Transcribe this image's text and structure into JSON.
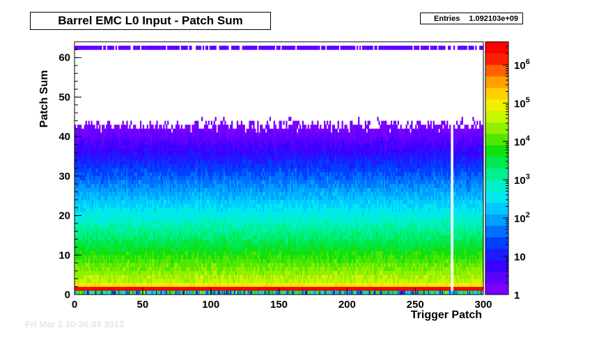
{
  "title": "Barrel EMC L0 Input - Patch Sum",
  "stats": {
    "label": "Entries",
    "value": "1.092103e+09"
  },
  "footer": {
    "date": "Fri Mar  2 10:36:09 2012"
  },
  "chart_data": {
    "type": "heatmap",
    "title": "Barrel EMC L0 Input - Patch Sum",
    "xlabel": "Trigger Patch",
    "ylabel": "Patch Sum",
    "xlim": [
      0,
      300
    ],
    "ylim": [
      0,
      64
    ],
    "x_ticks": [
      0,
      50,
      100,
      150,
      200,
      250,
      300
    ],
    "y_ticks": [
      0,
      10,
      20,
      30,
      40,
      50,
      60
    ],
    "z_scale": "log",
    "zlim": [
      1,
      4000000
    ],
    "z_ticks": [
      {
        "value": 1,
        "label": "1"
      },
      {
        "value": 10,
        "label": "10"
      },
      {
        "value": 100,
        "label": "10",
        "exp": "2"
      },
      {
        "value": 1000,
        "label": "10",
        "exp": "3"
      },
      {
        "value": 10000,
        "label": "10",
        "exp": "4"
      },
      {
        "value": 100000,
        "label": "10",
        "exp": "5"
      },
      {
        "value": 1000000,
        "label": "10",
        "exp": "6"
      }
    ],
    "palette": [
      "#7a00ff",
      "#5c00ff",
      "#3a00ff",
      "#1c1cff",
      "#0040ff",
      "#0070ff",
      "#00a0ff",
      "#00c8ff",
      "#00e8f0",
      "#00f0c8",
      "#00f08c",
      "#00e850",
      "#10e010",
      "#50e800",
      "#90f000",
      "#c8f800",
      "#f0f000",
      "#ffd000",
      "#ffa000",
      "#ff6000",
      "#ff2000",
      "#ff0000"
    ],
    "empty_columns": [
      276,
      277
    ],
    "spike_bins": {
      "y": 1,
      "value": 3000000
    }
  }
}
